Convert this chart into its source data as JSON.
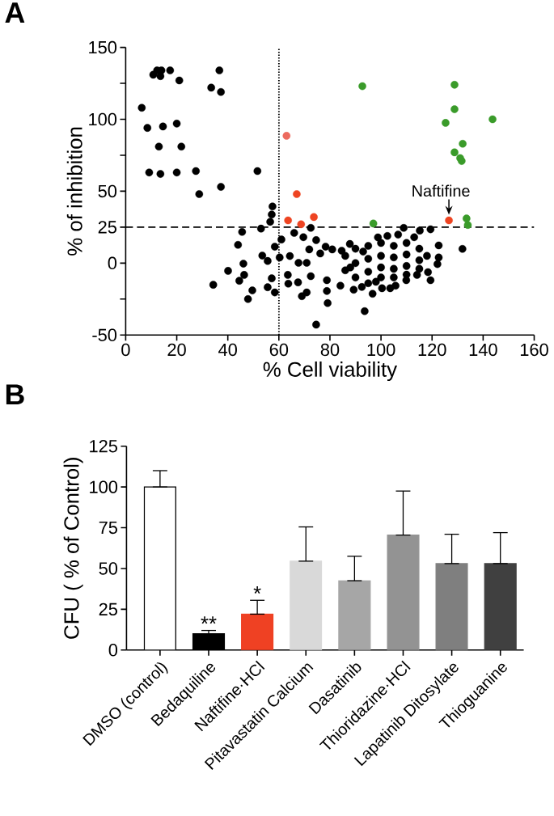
{
  "chart_data": [
    {
      "type": "scatter",
      "title": "A",
      "xlabel": "% Cell viability",
      "ylabel": "% of inhibition",
      "marker": "circle",
      "xlim": [
        0,
        160
      ],
      "xticks": [
        0,
        20,
        40,
        60,
        80,
        100,
        120,
        140,
        160
      ],
      "ylim": [
        -50,
        150
      ],
      "yticks": [
        -50,
        {
          "value": -25,
          "label": null
        },
        0,
        25,
        50,
        {
          "value": 75,
          "label": null
        },
        100,
        {
          "value": 125,
          "label": null
        },
        150
      ],
      "ref_lines": [
        {
          "axis": "x",
          "value": 60,
          "line_style": "dotted"
        },
        {
          "axis": "y",
          "value": 25,
          "line_style": "dashed"
        }
      ],
      "annotations": [
        {
          "text": "Naftifine",
          "x": 126.6,
          "y": 29.7
        }
      ],
      "series": [
        {
          "color": "#000000",
          "x": [
            10.8,
            12.3,
            14,
            13.6,
            17.4,
            21,
            36.7,
            33.5,
            37.3,
            6.3,
            8.5,
            14.6,
            20,
            13,
            21.8,
            9.2,
            13.6,
            20,
            27.5,
            51.6,
            37.3,
            28.8,
            57.5,
            57.2,
            56.6,
            53,
            45.6,
            44,
            131.9,
            72.5,
            66,
            69.6,
            61,
            58.4,
            53.5,
            55.6,
            46.1,
            40.1,
            34.3,
            44.5,
            46.4,
            49.6,
            47.9,
            55.6,
            57.2,
            58.4,
            60.3,
            63.5,
            63.7,
            64.3,
            67.7,
            67.5,
            69,
            70.9,
            70.9,
            72.5,
            74.6,
            71.9,
            76.2,
            78.8,
            78.8,
            79.1,
            74.6,
            84.1,
            78.3,
            80.9,
            84.6,
            87.8,
            93.6,
            96.7,
            89.3,
            92.5,
            103.6,
            108.9,
            115.2,
            119.4,
            102.5,
            98.8,
            106.7,
            122.6,
            122.6,
            122.1,
            119.4,
            118.4,
            114.1,
            109.9,
            105.7,
            100.4,
            86,
            86,
            90,
            90,
            90,
            95,
            95,
            95,
            95,
            100,
            100,
            100,
            100,
            105,
            105,
            105,
            105,
            110,
            110,
            110,
            110,
            115,
            115,
            115,
            118,
            113,
            98,
            93,
            88
          ],
          "values": [
            131,
            134,
            134,
            130,
            134,
            127,
            134,
            122,
            119,
            108,
            94,
            95,
            97,
            81,
            81,
            63,
            62,
            63,
            64,
            64,
            53,
            48,
            39.4,
            33.8,
            28.7,
            24,
            21.7,
            12.7,
            9.9,
            24.5,
            21,
            18,
            16.4,
            11.4,
            5.2,
            1.5,
            -0.4,
            -5.4,
            -15.1,
            -12.3,
            -8.2,
            -19,
            -25,
            -16.8,
            -10.6,
            -20.4,
            3.9,
            -8.2,
            -14.3,
            4.9,
            0.2,
            -13.4,
            -23,
            -20.4,
            0.2,
            -9.1,
            16,
            9.5,
            6.7,
            -11.9,
            -19.4,
            -27.8,
            -42.8,
            -15.7,
            11.4,
            9.5,
            8.6,
            13.3,
            -33.4,
            -21.3,
            -18.5,
            -16.6,
            -17.5,
            24.5,
            22.6,
            23.5,
            18.9,
            17.9,
            19.8,
            12.3,
            3.9,
            -0.7,
            -11.9,
            -6.3,
            -8.2,
            -11.9,
            -15.7,
            -17.5,
            5,
            -5,
            10,
            0,
            -10,
            12,
            3,
            -6,
            -14,
            14,
            5,
            -3,
            -10,
            12,
            4,
            -4,
            -10,
            14,
            6,
            -2,
            -8,
            10,
            2,
            -4,
            5,
            18,
            -13,
            8,
            -3
          ]
        },
        {
          "color": "#ee4422",
          "x": [
            67,
            63.6,
            68.7,
            73.7,
            126.6
          ],
          "values": [
            48,
            29.7,
            27,
            32,
            29.7
          ]
        },
        {
          "color": "#ec6a5e",
          "x": [
            63
          ],
          "values": [
            88.5
          ]
        },
        {
          "color": "#3a9b2a",
          "x": [
            92.7,
            128.8,
            128.8,
            125.3,
            143.7,
            132,
            128.8,
            131.6,
            131,
            97,
            133.5,
            134
          ],
          "values": [
            123,
            124,
            107,
            97.5,
            100,
            83,
            77,
            71,
            73,
            27.5,
            31,
            26.5
          ]
        }
      ]
    },
    {
      "type": "bar",
      "title": "B",
      "ylabel": "CFU ( % of Control)",
      "categories": [
        "DMSO (control)",
        "Bedaquiline",
        "Naftifine·HCl",
        "Pitavastatin Calcium",
        "Dasatinib",
        "Thioridazine·HCl",
        "Lapatinib Ditosylate",
        "Thioguanine"
      ],
      "values": [
        100,
        10,
        22,
        54.5,
        42.5,
        70.5,
        53,
        53
      ],
      "errors": [
        [
          100,
          110
        ],
        [
          10,
          12
        ],
        [
          22,
          30.5
        ],
        [
          54.5,
          75.5
        ],
        [
          42.5,
          57.5
        ],
        [
          70.5,
          97.5
        ],
        [
          53,
          71
        ],
        [
          53,
          72
        ]
      ],
      "colors": [
        "#ffffff",
        "#000000",
        "#ef4123",
        "#d9d9d9",
        "#a6a6a6",
        "#939393",
        "#7f7f7f",
        "#404040"
      ],
      "ylim": [
        0,
        125
      ],
      "yticks": [
        0,
        25,
        50,
        75,
        100,
        125
      ],
      "annotations": [
        {
          "text": "**",
          "x": "Bedaquiline",
          "y": 12
        },
        {
          "text": "*",
          "x": "Naftifine·HCl",
          "y": 30.5
        }
      ]
    }
  ]
}
